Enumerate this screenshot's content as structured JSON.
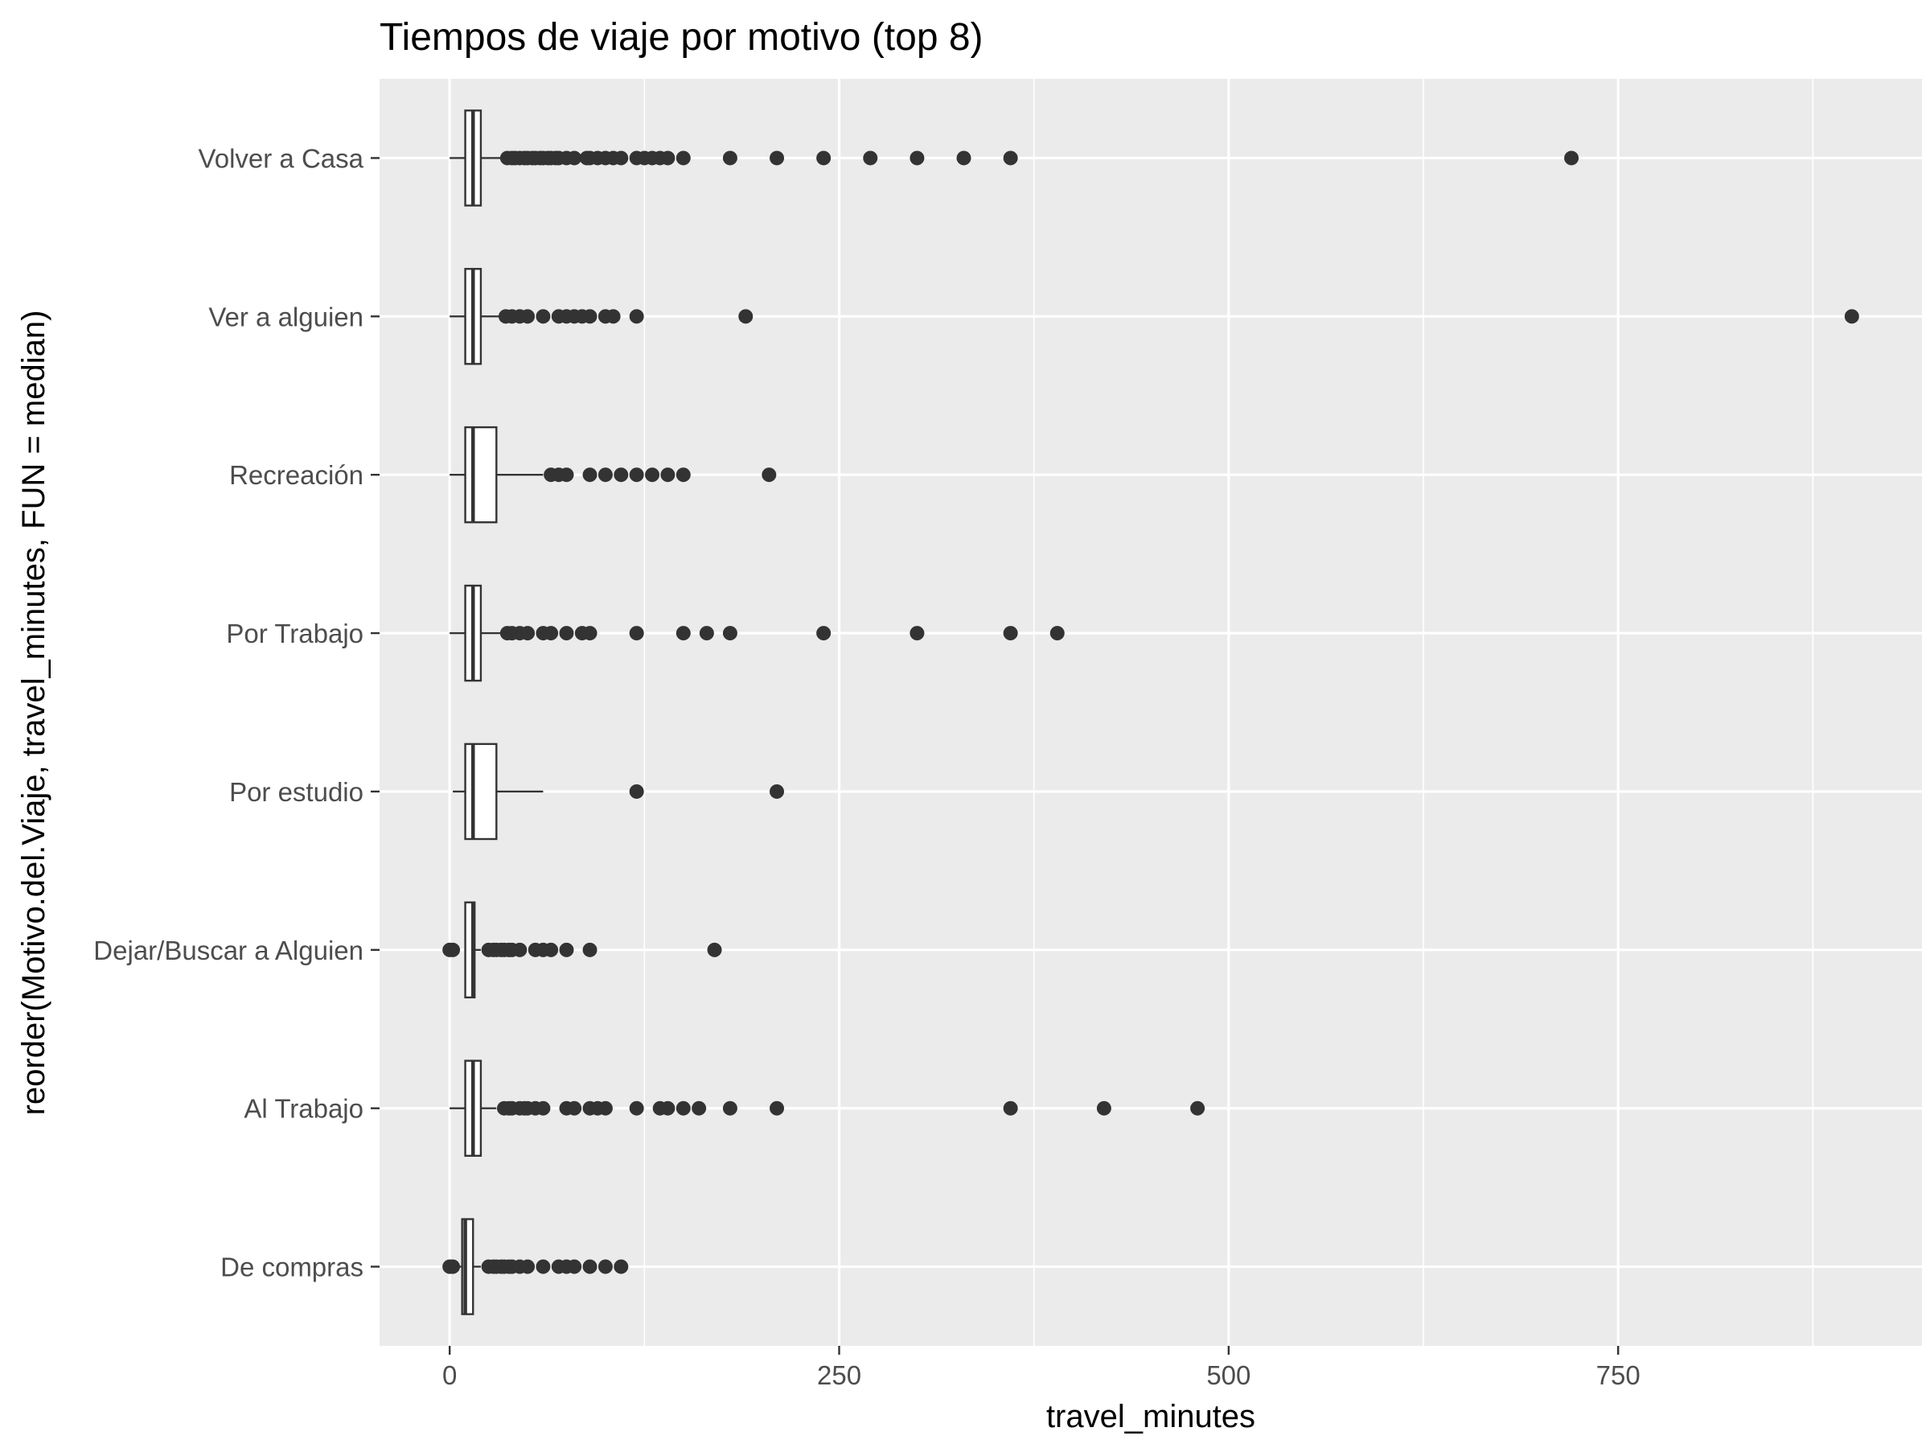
{
  "chart_data": {
    "type": "boxplot",
    "orientation": "horizontal",
    "title": "Tiempos de viaje por motivo (top 8)",
    "xlabel": "travel_minutes",
    "ylabel": "reorder(Motivo.del.Viaje, travel_minutes, FUN = median)",
    "xlim": [
      -45,
      945
    ],
    "x_ticks": [
      0,
      250,
      500,
      750
    ],
    "x_tick_labels": [
      "0",
      "250",
      "500",
      "750"
    ],
    "grid": true,
    "panel_background": "#ebebeb",
    "grid_color": "#ffffff",
    "box_stroke": "#333333",
    "box_fill": "#ffffff",
    "point_color": "#333333",
    "categories": [
      "Volver a Casa",
      "Ver a alguien",
      "Recreación",
      "Por Trabajo",
      "Por estudio",
      "Dejar/Buscar a Alguien",
      "Al Trabajo",
      "De compras"
    ],
    "boxes": [
      {
        "category": "Volver a Casa",
        "min": 0,
        "q1": 10,
        "median": 15,
        "q3": 20,
        "max": 35,
        "outliers": [
          37,
          40,
          42,
          45,
          48,
          50,
          53,
          55,
          58,
          60,
          63,
          65,
          68,
          70,
          75,
          80,
          88,
          90,
          95,
          100,
          105,
          110,
          120,
          125,
          130,
          135,
          140,
          150,
          180,
          210,
          240,
          270,
          300,
          330,
          360,
          720
        ]
      },
      {
        "category": "Ver a alguien",
        "min": 0,
        "q1": 10,
        "median": 15,
        "q3": 20,
        "max": 35,
        "outliers": [
          36,
          40,
          45,
          50,
          60,
          70,
          75,
          80,
          85,
          90,
          100,
          105,
          120,
          190,
          900
        ]
      },
      {
        "category": "Recreación",
        "min": 0,
        "q1": 10,
        "median": 15,
        "q3": 30,
        "max": 60,
        "outliers": [
          65,
          70,
          75,
          90,
          100,
          110,
          120,
          130,
          140,
          150,
          205
        ]
      },
      {
        "category": "Por Trabajo",
        "min": 0,
        "q1": 10,
        "median": 15,
        "q3": 20,
        "max": 35,
        "outliers": [
          37,
          40,
          45,
          50,
          60,
          65,
          75,
          85,
          90,
          120,
          150,
          165,
          180,
          240,
          300,
          360,
          390
        ]
      },
      {
        "category": "Por estudio",
        "min": 2,
        "q1": 10,
        "median": 15,
        "q3": 30,
        "max": 60,
        "outliers": [
          120,
          210
        ]
      },
      {
        "category": "Dejar/Buscar a Alguien",
        "min": 10,
        "q1": 10,
        "median": 15,
        "q3": 16,
        "max": 20,
        "outliers": [
          0,
          2,
          25,
          28,
          30,
          33,
          35,
          38,
          40,
          45,
          55,
          60,
          65,
          75,
          90,
          170
        ]
      },
      {
        "category": "Al Trabajo",
        "min": 0,
        "q1": 10,
        "median": 15,
        "q3": 20,
        "max": 30,
        "outliers": [
          35,
          38,
          40,
          45,
          48,
          50,
          55,
          60,
          75,
          80,
          90,
          95,
          100,
          120,
          135,
          140,
          150,
          160,
          180,
          210,
          360,
          420,
          480
        ]
      },
      {
        "category": "De compras",
        "min": 0,
        "q1": 8,
        "median": 10,
        "q3": 15,
        "max": 20,
        "outliers": [
          0,
          2,
          25,
          28,
          30,
          33,
          35,
          38,
          40,
          45,
          50,
          60,
          70,
          75,
          80,
          90,
          100,
          110
        ]
      }
    ]
  }
}
